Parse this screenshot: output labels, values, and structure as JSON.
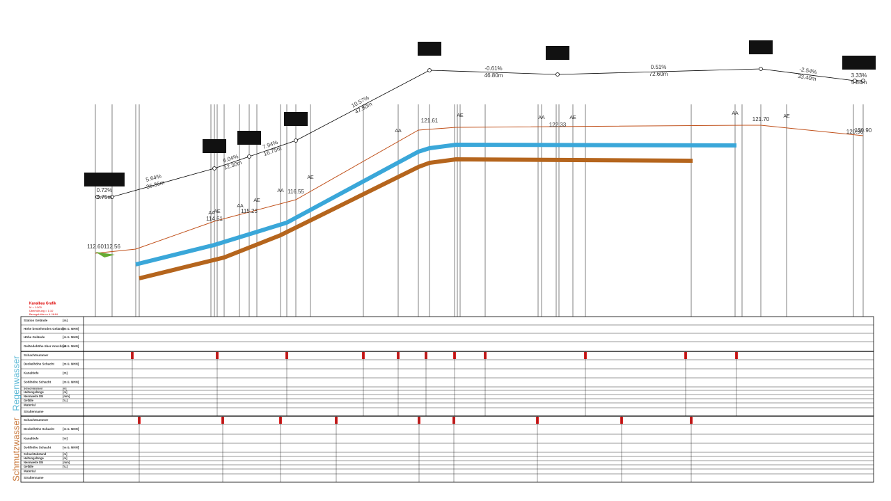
{
  "legend": {
    "title": "Kanalbau Grafik",
    "lines": [
      "M = 1:500",
      "Überhöhung = 1:10",
      "Bezugshöhe m ü. NHN"
    ]
  },
  "profile": {
    "slopes": [
      {
        "grade": "0.72%",
        "length": "5.75m"
      },
      {
        "grade": "5.64%",
        "length": "36.36m"
      },
      {
        "grade": "6.04%",
        "length": "12.30m"
      },
      {
        "grade": "7.94%",
        "length": "16.75m"
      },
      {
        "grade": "10.57%",
        "length": "47.80m"
      },
      {
        "grade": "-0.61%",
        "length": "46.80m"
      },
      {
        "grade": "0.51%",
        "length": "72.60m"
      },
      {
        "grade": "-2.54%",
        "length": "33.40m"
      },
      {
        "grade": "3.33%",
        "length": "5.84m"
      }
    ],
    "elevations": [
      "112.60",
      "112.56",
      "114.61",
      "115.23",
      "116.55",
      "121.61",
      "122.33",
      "121.70",
      "120.90",
      "120.90"
    ],
    "markers": [
      "AA",
      "AE",
      "AA",
      "AE",
      "AA",
      "AE",
      "AA",
      "AE",
      "AA",
      "AE",
      "AA",
      "AE"
    ]
  },
  "sections": [
    "Regenwasser",
    "Schmutzwasser"
  ],
  "table": {
    "rows": [
      {
        "label": "Station Gelände",
        "unit": "[m]"
      },
      {
        "label": "Höhe bestehendes Gelände",
        "unit": "[m ü. NHN]"
      },
      {
        "label": "Höhe Gelände",
        "unit": "[m ü. NHN]"
      },
      {
        "label": "Geländehöhe über Anschnitt",
        "unit": "[m ü. NHN]"
      },
      {
        "label": "Schachtnummer",
        "unit": ""
      },
      {
        "label": "Deckelhöhe Schacht",
        "unit": "[m ü. NHN]"
      },
      {
        "label": "Kanaltiefe",
        "unit": "[m]"
      },
      {
        "label": "Sohlhöhe Schacht",
        "unit": "[m ü. NHN]"
      },
      {
        "label": "Schachtabstand",
        "unit": "[m]"
      },
      {
        "label": "Haltungslänge",
        "unit": "[m]"
      },
      {
        "label": "Nennweite DN",
        "unit": "[mm]"
      },
      {
        "label": "Gefälle",
        "unit": "[‰]"
      },
      {
        "label": "Material",
        "unit": ""
      },
      {
        "label": "Straßenname",
        "unit": ""
      },
      {
        "label": "Schachtnummer",
        "unit": ""
      },
      {
        "label": "Deckelhöhe Schacht",
        "unit": "[m ü. NHN]"
      },
      {
        "label": "Kanaltiefe",
        "unit": "[m]"
      },
      {
        "label": "Sohlhöhe Schacht",
        "unit": "[m ü. NHN]"
      },
      {
        "label": "Schachtabstand",
        "unit": "[m]"
      },
      {
        "label": "Haltungslänge",
        "unit": "[m]"
      },
      {
        "label": "Nennweite DN",
        "unit": "[mm]"
      },
      {
        "label": "Gefälle",
        "unit": "[‰]"
      },
      {
        "label": "Material",
        "unit": ""
      },
      {
        "label": "Straßenname",
        "unit": ""
      }
    ]
  }
}
